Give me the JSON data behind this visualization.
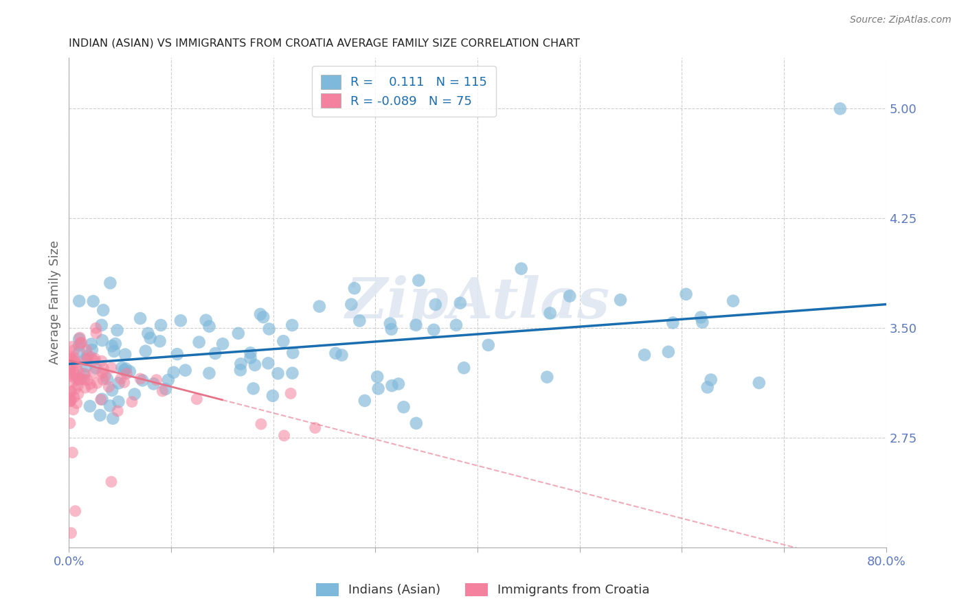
{
  "title": "INDIAN (ASIAN) VS IMMIGRANTS FROM CROATIA AVERAGE FAMILY SIZE CORRELATION CHART",
  "source": "Source: ZipAtlas.com",
  "ylabel": "Average Family Size",
  "yticks": [
    2.75,
    3.5,
    4.25,
    5.0
  ],
  "ytick_labels": [
    "2.75",
    "3.50",
    "4.25",
    "5.00"
  ],
  "xlim": [
    0.0,
    0.8
  ],
  "ylim": [
    2.0,
    5.35
  ],
  "xtick_positions": [
    0.0,
    0.1,
    0.2,
    0.3,
    0.4,
    0.5,
    0.6,
    0.7,
    0.8
  ],
  "xtick_labels": [
    "0.0%",
    "",
    "",
    "",
    "",
    "",
    "",
    "",
    "80.0%"
  ],
  "blue_color": "#7EB8DA",
  "pink_color": "#F4829E",
  "blue_line_color": "#1A6EAF",
  "pink_line_color": "#E8728A",
  "title_color": "#222222",
  "axis_label_color": "#5B78C0",
  "watermark": "ZipAtlas",
  "legend_entry1": "R =    0.111   N = 115",
  "legend_entry2": "R = -0.089   N = 75",
  "bottom_label1": "Indians (Asian)",
  "bottom_label2": "Immigrants from Croatia"
}
